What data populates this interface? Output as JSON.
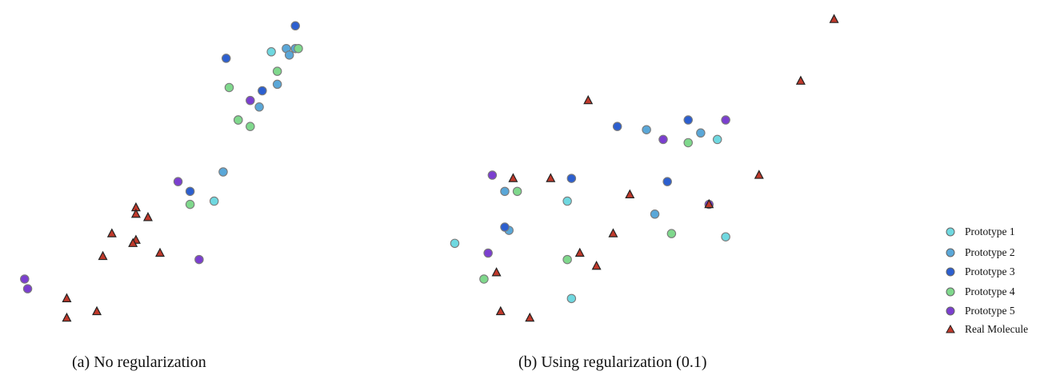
{
  "captions": {
    "a": "(a) No regularization",
    "b": "(b) Using regularization (0.1)"
  },
  "legend": [
    {
      "label": "Prototype 1",
      "marker": "circle",
      "color": "#6fd8e0"
    },
    {
      "label": "Prototype 2",
      "marker": "circle",
      "color": "#5aa7d8"
    },
    {
      "label": "Prototype 3",
      "marker": "circle",
      "color": "#2c5fcf"
    },
    {
      "label": "Prototype 4",
      "marker": "circle",
      "color": "#7fd88c"
    },
    {
      "label": "Prototype 5",
      "marker": "circle",
      "color": "#7b3fcf"
    },
    {
      "label": "Real Molecule",
      "marker": "triangle",
      "color": "#c0392b"
    }
  ],
  "chart_data": [
    {
      "type": "scatter",
      "title": "",
      "xlabel": "",
      "ylabel": "",
      "xlim": [
        0,
        1
      ],
      "ylim": [
        0,
        1
      ],
      "grid": false,
      "series": [
        {
          "name": "Prototype 1",
          "points": [
            [
              0.87,
              0.87
            ],
            [
              0.68,
              0.41
            ]
          ]
        },
        {
          "name": "Prototype 2",
          "points": [
            [
              0.92,
              0.88
            ],
            [
              0.93,
              0.86
            ],
            [
              0.95,
              0.88
            ],
            [
              0.89,
              0.77
            ],
            [
              0.83,
              0.7
            ],
            [
              0.71,
              0.5
            ]
          ]
        },
        {
          "name": "Prototype 3",
          "points": [
            [
              0.95,
              0.95
            ],
            [
              0.72,
              0.85
            ],
            [
              0.84,
              0.75
            ],
            [
              0.76,
              0.66
            ],
            [
              0.6,
              0.44
            ]
          ]
        },
        {
          "name": "Prototype 4",
          "points": [
            [
              0.96,
              0.88
            ],
            [
              0.89,
              0.81
            ],
            [
              0.73,
              0.76
            ],
            [
              0.76,
              0.66
            ],
            [
              0.8,
              0.64
            ],
            [
              0.6,
              0.4
            ]
          ]
        },
        {
          "name": "Prototype 5",
          "points": [
            [
              0.8,
              0.72
            ],
            [
              0.56,
              0.47
            ],
            [
              0.63,
              0.23
            ],
            [
              0.05,
              0.17
            ],
            [
              0.06,
              0.14
            ]
          ]
        },
        {
          "name": "Real Molecule",
          "points": [
            [
              0.42,
              0.39
            ],
            [
              0.42,
              0.37
            ],
            [
              0.46,
              0.36
            ],
            [
              0.34,
              0.31
            ],
            [
              0.42,
              0.29
            ],
            [
              0.41,
              0.28
            ],
            [
              0.5,
              0.25
            ],
            [
              0.31,
              0.24
            ],
            [
              0.19,
              0.11
            ],
            [
              0.29,
              0.07
            ],
            [
              0.19,
              0.05
            ]
          ]
        }
      ]
    },
    {
      "type": "scatter",
      "title": "",
      "xlabel": "",
      "ylabel": "",
      "xlim": [
        0,
        1
      ],
      "ylim": [
        0,
        1
      ],
      "grid": false,
      "series": [
        {
          "name": "Prototype 1",
          "points": [
            [
              0.7,
              0.6
            ],
            [
              0.34,
              0.41
            ],
            [
              0.72,
              0.3
            ],
            [
              0.07,
              0.28
            ],
            [
              0.35,
              0.11
            ]
          ]
        },
        {
          "name": "Prototype 2",
          "points": [
            [
              0.53,
              0.63
            ],
            [
              0.66,
              0.62
            ],
            [
              0.19,
              0.44
            ],
            [
              0.55,
              0.37
            ],
            [
              0.2,
              0.32
            ]
          ]
        },
        {
          "name": "Prototype 3",
          "points": [
            [
              0.46,
              0.64
            ],
            [
              0.63,
              0.66
            ],
            [
              0.35,
              0.48
            ],
            [
              0.58,
              0.47
            ],
            [
              0.19,
              0.33
            ]
          ]
        },
        {
          "name": "Prototype 4",
          "points": [
            [
              0.63,
              0.59
            ],
            [
              0.22,
              0.44
            ],
            [
              0.59,
              0.31
            ],
            [
              0.34,
              0.23
            ],
            [
              0.14,
              0.17
            ]
          ]
        },
        {
          "name": "Prototype 5",
          "points": [
            [
              0.72,
              0.66
            ],
            [
              0.57,
              0.6
            ],
            [
              0.16,
              0.49
            ],
            [
              0.68,
              0.4
            ],
            [
              0.15,
              0.25
            ]
          ]
        },
        {
          "name": "Real Molecule",
          "points": [
            [
              0.98,
              0.97
            ],
            [
              0.9,
              0.78
            ],
            [
              0.39,
              0.72
            ],
            [
              0.8,
              0.49
            ],
            [
              0.21,
              0.48
            ],
            [
              0.3,
              0.48
            ],
            [
              0.49,
              0.43
            ],
            [
              0.68,
              0.4
            ],
            [
              0.45,
              0.31
            ],
            [
              0.37,
              0.25
            ],
            [
              0.41,
              0.21
            ],
            [
              0.17,
              0.19
            ],
            [
              0.18,
              0.07
            ],
            [
              0.25,
              0.05
            ]
          ]
        }
      ]
    }
  ]
}
